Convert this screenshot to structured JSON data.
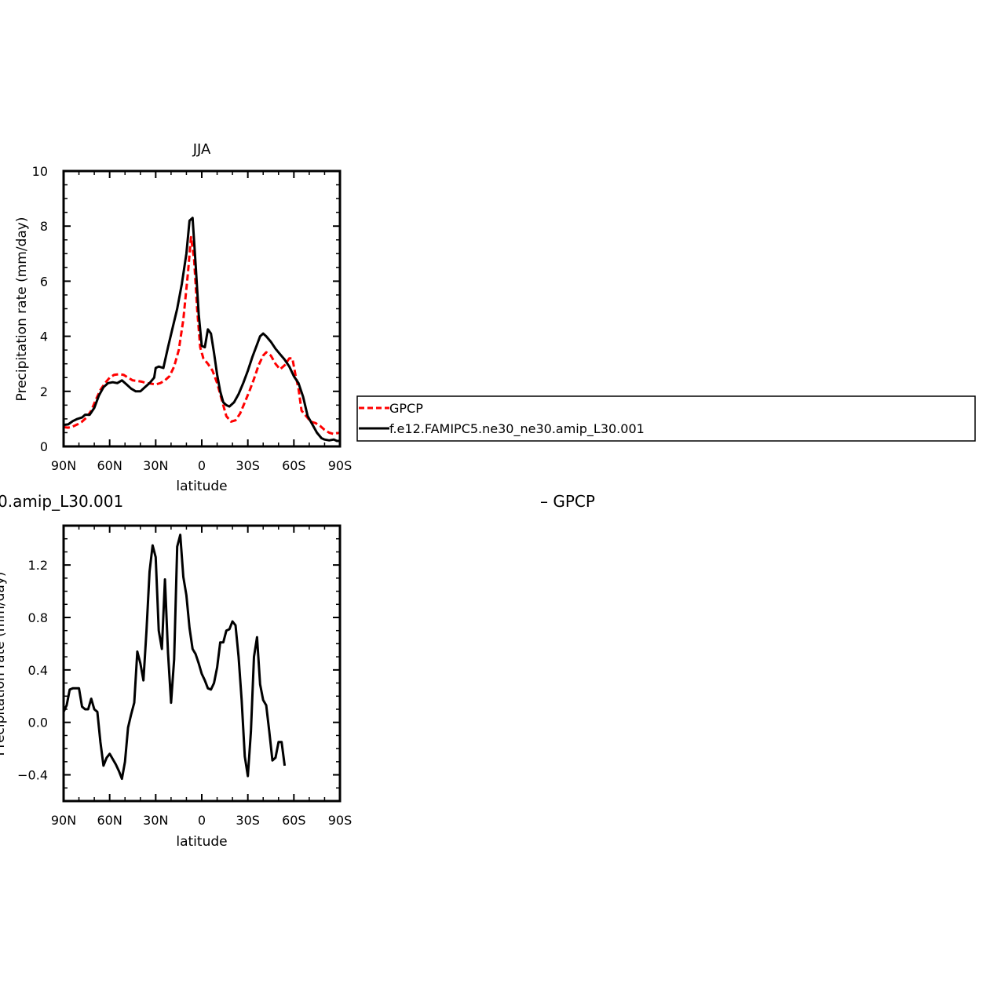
{
  "chart_data": [
    {
      "type": "line",
      "title": "JJA",
      "xlabel": "latitude",
      "ylabel": "Precipitation rate (mm/day)",
      "xlim": [
        90,
        -90
      ],
      "ylim": [
        0,
        10
      ],
      "x_tick_labels": [
        "90N",
        "60N",
        "30N",
        "0",
        "30S",
        "60S",
        "90S"
      ],
      "y_tick_labels": [
        "0",
        "2",
        "4",
        "6",
        "8",
        "10"
      ],
      "legend": {
        "placement": "right",
        "entries": [
          "GPCP",
          "f.e12.FAMIPC5.ne30_ne30.amip_L30.001"
        ]
      },
      "series": [
        {
          "name": "GPCP",
          "color": "#ff0000",
          "dashed": true,
          "points": [
            [
              90,
              0.7
            ],
            [
              87,
              0.68
            ],
            [
              84,
              0.72
            ],
            [
              81,
              0.8
            ],
            [
              78,
              0.9
            ],
            [
              75,
              1.05
            ],
            [
              72,
              1.3
            ],
            [
              69,
              1.7
            ],
            [
              66,
              2.05
            ],
            [
              63,
              2.3
            ],
            [
              60,
              2.5
            ],
            [
              57,
              2.6
            ],
            [
              54,
              2.62
            ],
            [
              51,
              2.6
            ],
            [
              48,
              2.5
            ],
            [
              45,
              2.4
            ],
            [
              42,
              2.38
            ],
            [
              39,
              2.35
            ],
            [
              36,
              2.3
            ],
            [
              33,
              2.28
            ],
            [
              30,
              2.25
            ],
            [
              27,
              2.3
            ],
            [
              24,
              2.4
            ],
            [
              21,
              2.55
            ],
            [
              18,
              2.9
            ],
            [
              15,
              3.5
            ],
            [
              12,
              4.6
            ],
            [
              9,
              6.3
            ],
            [
              7,
              7.6
            ],
            [
              5,
              6.8
            ],
            [
              3,
              5.0
            ],
            [
              1,
              3.6
            ],
            [
              -1,
              3.2
            ],
            [
              -4,
              3.0
            ],
            [
              -7,
              2.75
            ],
            [
              -10,
              2.3
            ],
            [
              -13,
              1.7
            ],
            [
              -16,
              1.1
            ],
            [
              -19,
              0.9
            ],
            [
              -22,
              0.95
            ],
            [
              -25,
              1.2
            ],
            [
              -28,
              1.6
            ],
            [
              -31,
              2.0
            ],
            [
              -34,
              2.45
            ],
            [
              -37,
              2.95
            ],
            [
              -40,
              3.3
            ],
            [
              -42,
              3.42
            ],
            [
              -45,
              3.3
            ],
            [
              -48,
              3.0
            ],
            [
              -51,
              2.8
            ],
            [
              -54,
              2.95
            ],
            [
              -57,
              3.2
            ],
            [
              -59,
              3.2
            ],
            [
              -61,
              2.6
            ],
            [
              -63,
              2.1
            ],
            [
              -65,
              1.3
            ],
            [
              -68,
              1.1
            ],
            [
              -71,
              0.9
            ],
            [
              -74,
              0.85
            ],
            [
              -77,
              0.75
            ],
            [
              -80,
              0.6
            ],
            [
              -83,
              0.5
            ],
            [
              -86,
              0.45
            ],
            [
              -88,
              0.48
            ],
            [
              -90,
              0.5
            ]
          ]
        },
        {
          "name": "f.e12.FAMIPC5.ne30_ne30.amip_L30.001",
          "color": "#000000",
          "dashed": false,
          "points": [
            [
              90,
              0.78
            ],
            [
              87,
              0.8
            ],
            [
              84,
              0.92
            ],
            [
              81,
              1.0
            ],
            [
              78,
              1.05
            ],
            [
              76,
              1.15
            ],
            [
              73,
              1.15
            ],
            [
              70,
              1.4
            ],
            [
              67,
              1.85
            ],
            [
              64,
              2.15
            ],
            [
              61,
              2.3
            ],
            [
              58,
              2.33
            ],
            [
              55,
              2.3
            ],
            [
              52,
              2.4
            ],
            [
              49,
              2.25
            ],
            [
              46,
              2.1
            ],
            [
              43,
              2.0
            ],
            [
              40,
              2.0
            ],
            [
              37,
              2.15
            ],
            [
              34,
              2.3
            ],
            [
              31,
              2.5
            ],
            [
              30,
              2.85
            ],
            [
              28,
              2.9
            ],
            [
              25,
              2.85
            ],
            [
              22,
              3.6
            ],
            [
              19,
              4.3
            ],
            [
              16,
              5.0
            ],
            [
              13,
              5.9
            ],
            [
              10,
              7.0
            ],
            [
              8,
              8.2
            ],
            [
              6,
              8.3
            ],
            [
              4,
              6.6
            ],
            [
              2,
              4.8
            ],
            [
              0,
              3.65
            ],
            [
              -2,
              3.6
            ],
            [
              -4,
              4.25
            ],
            [
              -6,
              4.1
            ],
            [
              -8,
              3.4
            ],
            [
              -10,
              2.6
            ],
            [
              -12,
              2.0
            ],
            [
              -14,
              1.6
            ],
            [
              -16,
              1.5
            ],
            [
              -18,
              1.45
            ],
            [
              -21,
              1.6
            ],
            [
              -24,
              1.9
            ],
            [
              -27,
              2.3
            ],
            [
              -30,
              2.75
            ],
            [
              -33,
              3.25
            ],
            [
              -36,
              3.7
            ],
            [
              -38,
              4.0
            ],
            [
              -40,
              4.1
            ],
            [
              -42,
              4.0
            ],
            [
              -45,
              3.8
            ],
            [
              -48,
              3.55
            ],
            [
              -51,
              3.35
            ],
            [
              -54,
              3.15
            ],
            [
              -57,
              2.9
            ],
            [
              -60,
              2.55
            ],
            [
              -63,
              2.3
            ],
            [
              -66,
              1.8
            ],
            [
              -69,
              1.1
            ],
            [
              -72,
              0.8
            ],
            [
              -75,
              0.5
            ],
            [
              -78,
              0.3
            ],
            [
              -80,
              0.25
            ],
            [
              -83,
              0.22
            ],
            [
              -86,
              0.25
            ],
            [
              -88,
              0.2
            ],
            [
              -90,
              0.2
            ]
          ]
        }
      ]
    },
    {
      "type": "line",
      "title": "0.amip_L30.001",
      "title_right": "– GPCP",
      "xlabel": "latitude",
      "ylabel": "Precipitation rate (mm/day)",
      "xlim": [
        90,
        -90
      ],
      "ylim": [
        -0.6,
        1.5
      ],
      "x_tick_labels": [
        "90N",
        "60N",
        "30N",
        "0",
        "30S",
        "60S",
        "90S"
      ],
      "y_tick_labels": [
        "−0.4",
        "0.0",
        "0.4",
        "0.8",
        "1.2"
      ],
      "y_tick_values": [
        -0.4,
        0.0,
        0.4,
        0.8,
        1.2
      ],
      "series": [
        {
          "color": "#000000",
          "dashed": false,
          "points": [
            [
              90,
              0.08
            ],
            [
              88,
              0.13
            ],
            [
              86,
              0.25
            ],
            [
              84,
              0.26
            ],
            [
              82,
              0.26
            ],
            [
              80,
              0.26
            ],
            [
              78,
              0.12
            ],
            [
              76,
              0.1
            ],
            [
              74,
              0.1
            ],
            [
              72,
              0.18
            ],
            [
              70,
              0.1
            ],
            [
              68,
              0.08
            ],
            [
              66,
              -0.15
            ],
            [
              64,
              -0.33
            ],
            [
              62,
              -0.27
            ],
            [
              60,
              -0.24
            ],
            [
              58,
              -0.28
            ],
            [
              56,
              -0.32
            ],
            [
              54,
              -0.37
            ],
            [
              52,
              -0.43
            ],
            [
              50,
              -0.3
            ],
            [
              48,
              -0.04
            ],
            [
              46,
              0.06
            ],
            [
              44,
              0.15
            ],
            [
              42,
              0.54
            ],
            [
              40,
              0.45
            ],
            [
              38,
              0.32
            ],
            [
              36,
              0.7
            ],
            [
              34,
              1.15
            ],
            [
              32,
              1.35
            ],
            [
              30,
              1.26
            ],
            [
              28,
              0.7
            ],
            [
              26,
              0.56
            ],
            [
              24,
              1.09
            ],
            [
              22,
              0.53
            ],
            [
              20,
              0.15
            ],
            [
              18,
              0.48
            ],
            [
              16,
              1.34
            ],
            [
              14,
              1.43
            ],
            [
              12,
              1.11
            ],
            [
              10,
              0.97
            ],
            [
              8,
              0.72
            ],
            [
              6,
              0.56
            ],
            [
              4,
              0.52
            ],
            [
              2,
              0.45
            ],
            [
              0,
              0.37
            ],
            [
              -2,
              0.32
            ],
            [
              -4,
              0.26
            ],
            [
              -6,
              0.25
            ],
            [
              -8,
              0.3
            ],
            [
              -10,
              0.42
            ],
            [
              -12,
              0.61
            ],
            [
              -14,
              0.61
            ],
            [
              -16,
              0.7
            ],
            [
              -18,
              0.71
            ],
            [
              -20,
              0.77
            ],
            [
              -22,
              0.74
            ],
            [
              -24,
              0.5
            ],
            [
              -26,
              0.17
            ],
            [
              -28,
              -0.26
            ],
            [
              -30,
              -0.41
            ],
            [
              -32,
              -0.07
            ],
            [
              -34,
              0.5
            ],
            [
              -36,
              0.65
            ],
            [
              -38,
              0.29
            ],
            [
              -40,
              0.17
            ],
            [
              -42,
              0.13
            ],
            [
              -44,
              -0.07
            ],
            [
              -46,
              -0.29
            ],
            [
              -48,
              -0.27
            ],
            [
              -50,
              -0.15
            ],
            [
              -52,
              -0.15
            ],
            [
              -54,
              -0.33
            ]
          ]
        }
      ]
    }
  ]
}
